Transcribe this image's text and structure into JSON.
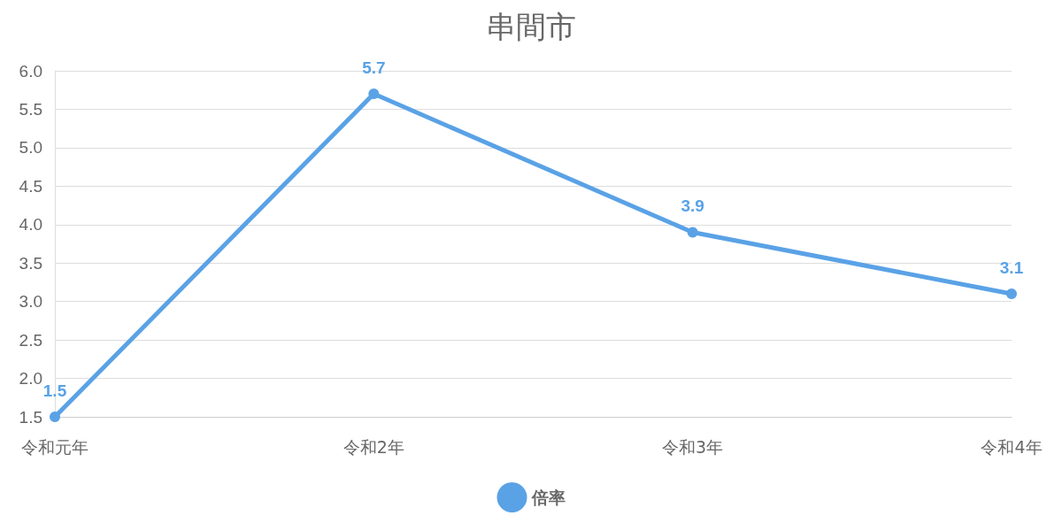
{
  "chart_data": {
    "type": "line",
    "title": "串間市",
    "categories": [
      "令和元年",
      "令和2年",
      "令和3年",
      "令和4年"
    ],
    "series": [
      {
        "name": "倍率",
        "color": "#5aa2e6",
        "values": [
          1.5,
          5.7,
          3.9,
          3.1
        ]
      }
    ],
    "ylim": [
      1.5,
      6.0
    ],
    "yticks": [
      {
        "value": 1.5,
        "label": "1.5"
      },
      {
        "value": 2,
        "label": "2.0"
      },
      {
        "value": 2.5,
        "label": "2.5"
      },
      {
        "value": 3,
        "label": "3.0"
      },
      {
        "value": 3.5,
        "label": "3.5"
      },
      {
        "value": 4,
        "label": "4.0"
      },
      {
        "value": 4.5,
        "label": "4.5"
      },
      {
        "value": 5,
        "label": "5.0"
      },
      {
        "value": 5.5,
        "label": "5.5"
      },
      {
        "value": 6,
        "label": "6.0"
      }
    ],
    "grid": "y",
    "legend": "bottom",
    "marker": "circle",
    "line_style": "solid",
    "data_labels": true
  }
}
